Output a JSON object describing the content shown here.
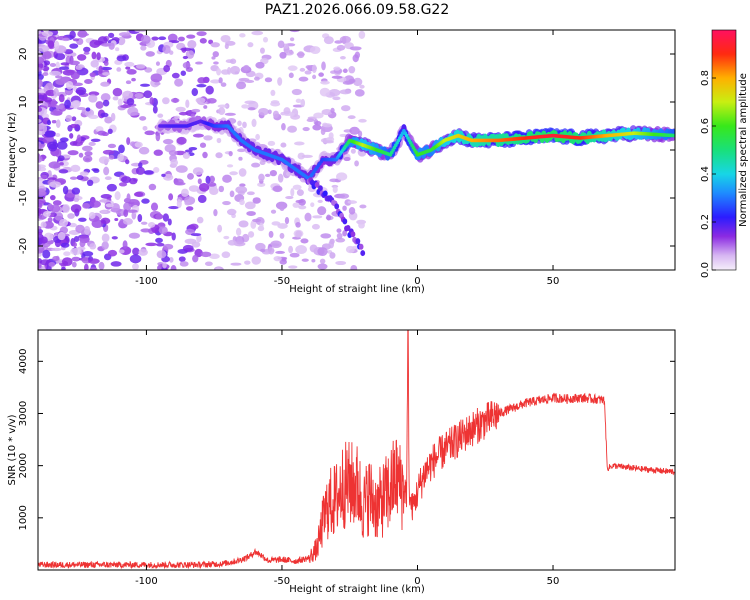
{
  "title": "PAZ1.2026.066.09.58.G22",
  "chart_data": [
    {
      "type": "heatmap",
      "name": "spectrogram",
      "xlabel": "Height of straight line (km)",
      "ylabel": "Frequency (Hz)",
      "xlim": [
        -140,
        95
      ],
      "ylim": [
        -25,
        25
      ],
      "xticks": [
        -100,
        -50,
        0,
        50
      ],
      "xtick_labels": [
        "-100",
        "-50",
        "0",
        "50"
      ],
      "yticks": [
        20,
        10,
        0,
        -10,
        -20
      ],
      "ytick_labels": [
        "20",
        "10",
        "0",
        "-10",
        "-20"
      ],
      "colorbar": {
        "label": "Normalized spectral amplitude",
        "range": [
          0.0,
          1.0
        ],
        "ticks": [
          0.0,
          0.2,
          0.4,
          0.6,
          0.8
        ],
        "tick_labels": [
          "0.0",
          "0.2",
          "0.4",
          "0.6",
          "0.8"
        ]
      },
      "ridge": {
        "x": [
          -95,
          -90,
          -85,
          -80,
          -75,
          -70,
          -65,
          -60,
          -55,
          -50,
          -45,
          -40,
          -35,
          -30,
          -25,
          -20,
          -15,
          -10,
          -5,
          0,
          5,
          10,
          15,
          20,
          30,
          40,
          50,
          60,
          70,
          80,
          95
        ],
        "y": [
          5,
          5,
          5,
          6,
          5,
          5,
          2,
          0,
          -1,
          -2,
          -4,
          -6,
          -2,
          -2,
          2,
          1,
          0,
          -1,
          4,
          -1,
          0,
          2,
          3,
          2,
          2,
          2.5,
          3,
          2.5,
          3,
          3.5,
          3
        ],
        "amplitude": [
          0.18,
          0.2,
          0.2,
          0.18,
          0.25,
          0.3,
          0.3,
          0.3,
          0.3,
          0.3,
          0.3,
          0.3,
          0.25,
          0.3,
          0.55,
          0.7,
          0.6,
          0.5,
          0.35,
          0.6,
          0.55,
          0.7,
          0.75,
          0.8,
          0.85,
          0.9,
          0.95,
          0.9,
          0.8,
          0.7,
          0.5
        ]
      },
      "branch": {
        "x": [
          -40,
          -35,
          -30,
          -25,
          -20
        ],
        "y": [
          -6,
          -9,
          -12,
          -17,
          -21
        ]
      }
    },
    {
      "type": "line",
      "name": "snr",
      "xlabel": "Height of straight line (km)",
      "ylabel": "SNR (10 * v/v)",
      "xlim": [
        -140,
        95
      ],
      "ylim": [
        0,
        4600
      ],
      "xticks": [
        -100,
        -50,
        0,
        50
      ],
      "xtick_labels": [
        "-100",
        "-50",
        "0",
        "50"
      ],
      "yticks": [
        1000,
        2000,
        3000,
        4000
      ],
      "ytick_labels": [
        "1000",
        "2000",
        "3000",
        "4000"
      ],
      "color": "#ee3333",
      "series": [
        {
          "name": "SNR",
          "x": [
            -140,
            -120,
            -100,
            -80,
            -72,
            -66,
            -64,
            -62,
            -60,
            -58,
            -55,
            -50,
            -45,
            -40,
            -37,
            -35,
            -33,
            -30,
            -28,
            -25,
            -22,
            -20,
            -18,
            -15,
            -12,
            -10,
            -8,
            -6,
            -4,
            -3.5,
            -3,
            -2,
            -1,
            0,
            3,
            6,
            10,
            15,
            20,
            25,
            30,
            35,
            40,
            45,
            50,
            55,
            60,
            65,
            69,
            70,
            72,
            80,
            90,
            95
          ],
          "y": [
            100,
            100,
            100,
            100,
            120,
            180,
            220,
            260,
            350,
            300,
            180,
            200,
            170,
            230,
            420,
            900,
            1250,
            1350,
            1600,
            1650,
            1600,
            1200,
            1450,
            1200,
            1400,
            1550,
            1800,
            1600,
            1500,
            4600,
            1350,
            1200,
            1300,
            1500,
            1900,
            2100,
            2300,
            2500,
            2700,
            2850,
            3000,
            3100,
            3200,
            3250,
            3300,
            3280,
            3300,
            3280,
            3250,
            1950,
            2000,
            1950,
            1900,
            1880
          ]
        }
      ]
    }
  ]
}
